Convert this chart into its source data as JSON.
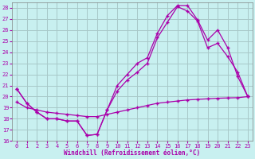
{
  "bg_color": "#c8f0f0",
  "grid_color": "#a8c8c8",
  "line_color": "#aa00aa",
  "xlabel": "Windchill (Refroidissement éolien,°C)",
  "xlim": [
    -0.5,
    23.5
  ],
  "ylim": [
    16,
    28.5
  ],
  "yticks": [
    16,
    17,
    18,
    19,
    20,
    21,
    22,
    23,
    24,
    25,
    26,
    27,
    28
  ],
  "xticks": [
    0,
    1,
    2,
    3,
    4,
    5,
    6,
    7,
    8,
    9,
    10,
    11,
    12,
    13,
    14,
    15,
    16,
    17,
    18,
    19,
    20,
    21,
    22,
    23
  ],
  "line1_x": [
    0,
    1,
    2,
    3,
    4,
    5,
    6,
    7,
    8,
    9,
    10,
    11,
    12,
    13,
    14,
    15,
    16,
    17,
    18,
    19,
    20,
    21,
    22,
    23
  ],
  "line1_y": [
    20.7,
    19.4,
    18.6,
    18.0,
    18.0,
    17.8,
    17.8,
    16.5,
    16.6,
    18.8,
    21.0,
    22.0,
    23.0,
    23.5,
    25.7,
    27.3,
    28.2,
    28.2,
    26.9,
    25.1,
    26.0,
    24.4,
    21.8,
    20.0
  ],
  "line2_x": [
    0,
    1,
    2,
    3,
    4,
    5,
    6,
    7,
    8,
    9,
    10,
    11,
    12,
    13,
    14,
    15,
    16,
    17,
    18,
    19,
    20,
    21,
    22,
    23
  ],
  "line2_y": [
    20.7,
    19.4,
    18.6,
    18.0,
    18.0,
    17.8,
    17.8,
    16.5,
    16.6,
    18.8,
    20.5,
    21.5,
    22.2,
    23.0,
    25.3,
    26.7,
    28.1,
    27.7,
    26.8,
    24.4,
    24.8,
    23.6,
    22.2,
    20.0
  ],
  "line3_x": [
    0,
    1,
    2,
    3,
    4,
    5,
    6,
    7,
    8,
    9,
    10,
    11,
    12,
    13,
    14,
    15,
    16,
    17,
    18,
    19,
    20,
    21,
    22,
    23
  ],
  "line3_y": [
    19.5,
    19.0,
    18.8,
    18.6,
    18.5,
    18.4,
    18.3,
    18.2,
    18.2,
    18.4,
    18.6,
    18.8,
    19.0,
    19.2,
    19.4,
    19.5,
    19.6,
    19.7,
    19.75,
    19.8,
    19.85,
    19.88,
    19.9,
    20.0
  ]
}
